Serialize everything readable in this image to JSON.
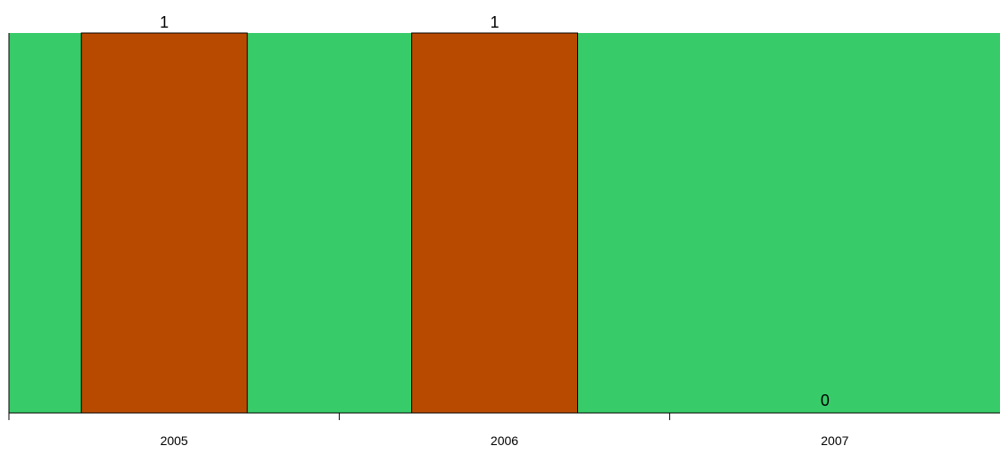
{
  "chart_data": {
    "type": "bar",
    "categories": [
      "2005",
      "2006",
      "2007"
    ],
    "values": [
      1,
      1,
      0
    ],
    "value_labels": [
      "1",
      "1",
      "0"
    ],
    "ylim": [
      0,
      1
    ],
    "grid": false,
    "legend": "none",
    "title": "",
    "xlabel": "",
    "ylabel": "",
    "colors": {
      "background": "#37cb69",
      "bar": "#b84a00",
      "bar_outline": "#000000",
      "axis": "#000000"
    }
  }
}
